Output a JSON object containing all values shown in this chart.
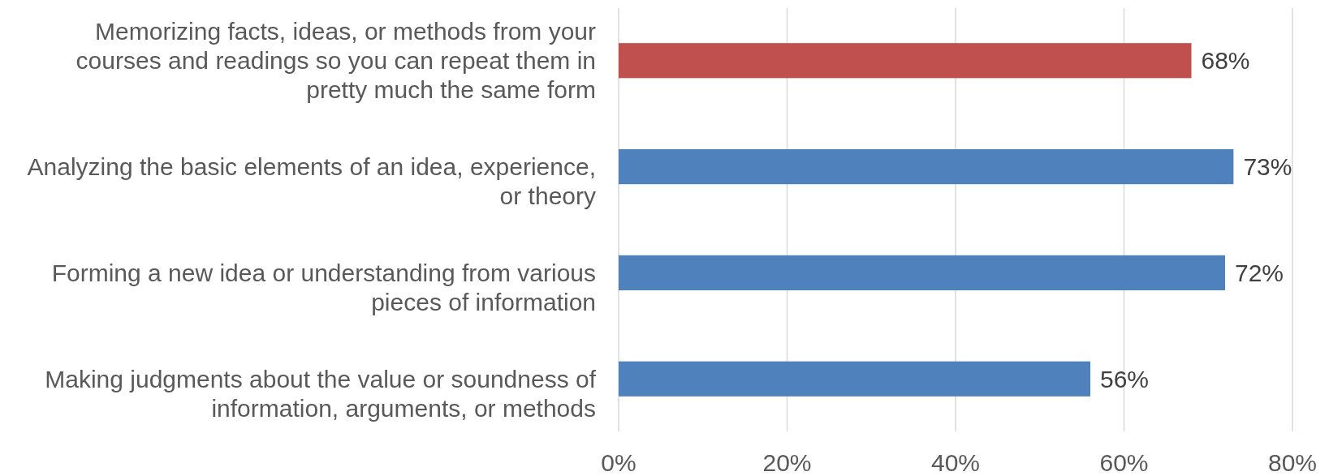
{
  "chart_data": {
    "type": "bar",
    "orientation": "horizontal",
    "categories": [
      "Memorizing facts, ideas, or methods from your courses and readings so you can repeat them in pretty much the same form",
      "Analyzing the basic elements of an idea, experience, or theory",
      "Forming a new idea or understanding from various pieces of information",
      "Making judgments about the value or soundness of information, arguments, or methods"
    ],
    "values": [
      68,
      73,
      72,
      56
    ],
    "colors": [
      "#c0504d",
      "#4f81bd",
      "#4f81bd",
      "#4f81bd"
    ],
    "value_labels": [
      "68%",
      "73%",
      "72%",
      "56%"
    ],
    "xlim": [
      0,
      80
    ],
    "xticks": [
      {
        "value": 0,
        "label": "0%"
      },
      {
        "value": 20,
        "label": "20%"
      },
      {
        "value": 40,
        "label": "40%"
      },
      {
        "value": 60,
        "label": "60%"
      },
      {
        "value": 80,
        "label": "80%"
      }
    ],
    "grid": "x"
  }
}
